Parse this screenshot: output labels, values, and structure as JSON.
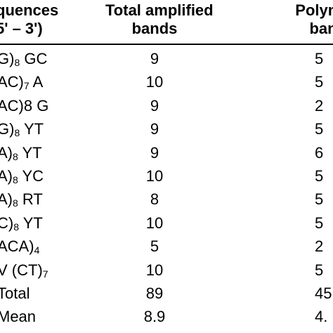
{
  "table": {
    "headers": {
      "sequences_line1": "quences",
      "sequences_line2": "5' – 3')",
      "total_line1": "Total amplified",
      "total_line2": "bands",
      "poly_line1": "Polymo",
      "poly_line2": "ban"
    },
    "rows": [
      {
        "seq_pre": "G)",
        "seq_sub": "8",
        "seq_post": " GC",
        "total": "9",
        "poly": "5"
      },
      {
        "seq_pre": "AC)",
        "seq_sub": "7",
        "seq_post": " A",
        "total": "10",
        "poly": "5"
      },
      {
        "seq_pre": "AC)8 G",
        "seq_sub": "",
        "seq_post": "",
        "total": "9",
        "poly": "2"
      },
      {
        "seq_pre": "G)",
        "seq_sub": "8",
        "seq_post": " YT",
        "total": "9",
        "poly": "5"
      },
      {
        "seq_pre": "A)",
        "seq_sub": "8",
        "seq_post": " YT",
        "total": "9",
        "poly": "6"
      },
      {
        "seq_pre": "A)",
        "seq_sub": "8",
        "seq_post": " YC",
        "total": "10",
        "poly": "5"
      },
      {
        "seq_pre": "A)",
        "seq_sub": "8",
        "seq_post": " RT",
        "total": "8",
        "poly": "5"
      },
      {
        "seq_pre": "C)",
        "seq_sub": "8",
        "seq_post": " YT",
        "total": "10",
        "poly": "5"
      },
      {
        "seq_pre": "ACA)",
        "seq_sub": "4",
        "seq_post": "",
        "total": "5",
        "poly": "2"
      },
      {
        "seq_pre": "V (CT)",
        "seq_sub": "7",
        "seq_post": "",
        "total": "10",
        "poly": "5"
      },
      {
        "seq_pre": "Total",
        "seq_sub": "",
        "seq_post": "",
        "total": "89",
        "poly": "45"
      },
      {
        "seq_pre": "Mean",
        "seq_sub": "",
        "seq_post": "",
        "total": "8.9",
        "poly": "4."
      }
    ]
  }
}
